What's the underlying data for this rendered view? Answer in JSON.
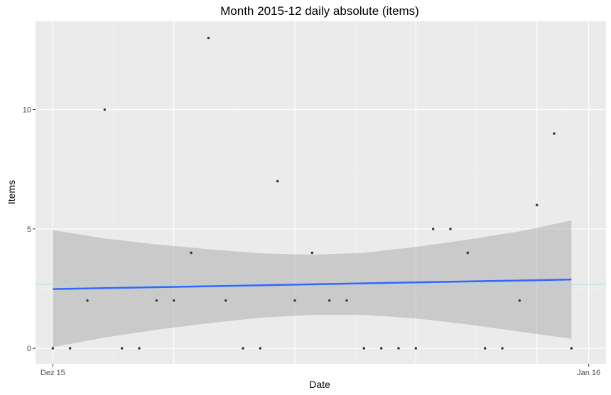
{
  "chart_data": {
    "type": "scatter",
    "title": "Month 2015-12 daily absolute (items)",
    "xlabel": "Date",
    "ylabel": "Items",
    "x_tick_labels": [
      {
        "date": "2015-12-01",
        "label": "Dez 15"
      },
      {
        "date": "2016-01-01",
        "label": "Jan 16"
      }
    ],
    "y_ticks": [
      0,
      5,
      10
    ],
    "xlim": [
      "2015-11-30",
      "2016-01-02"
    ],
    "ylim": [
      -0.65,
      13.7
    ],
    "grid": true,
    "points": [
      {
        "x": "2015-12-01",
        "y": 0
      },
      {
        "x": "2015-12-02",
        "y": 0
      },
      {
        "x": "2015-12-03",
        "y": 2
      },
      {
        "x": "2015-12-04",
        "y": 10
      },
      {
        "x": "2015-12-05",
        "y": 0
      },
      {
        "x": "2015-12-06",
        "y": 0
      },
      {
        "x": "2015-12-07",
        "y": 2
      },
      {
        "x": "2015-12-08",
        "y": 2
      },
      {
        "x": "2015-12-09",
        "y": 4
      },
      {
        "x": "2015-12-10",
        "y": 13
      },
      {
        "x": "2015-12-11",
        "y": 2
      },
      {
        "x": "2015-12-12",
        "y": 0
      },
      {
        "x": "2015-12-13",
        "y": 0
      },
      {
        "x": "2015-12-14",
        "y": 7
      },
      {
        "x": "2015-12-15",
        "y": 2
      },
      {
        "x": "2015-12-16",
        "y": 4
      },
      {
        "x": "2015-12-17",
        "y": 2
      },
      {
        "x": "2015-12-18",
        "y": 2
      },
      {
        "x": "2015-12-19",
        "y": 0
      },
      {
        "x": "2015-12-20",
        "y": 0
      },
      {
        "x": "2015-12-21",
        "y": 0
      },
      {
        "x": "2015-12-22",
        "y": 0
      },
      {
        "x": "2015-12-23",
        "y": 5
      },
      {
        "x": "2015-12-24",
        "y": 5
      },
      {
        "x": "2015-12-25",
        "y": 4
      },
      {
        "x": "2015-12-26",
        "y": 0
      },
      {
        "x": "2015-12-27",
        "y": 0
      },
      {
        "x": "2015-12-28",
        "y": 2
      },
      {
        "x": "2015-12-29",
        "y": 6
      },
      {
        "x": "2015-12-30",
        "y": 9
      },
      {
        "x": "2015-12-31",
        "y": 0
      }
    ],
    "mean_line": {
      "y": 2.68,
      "color": "#add8e6"
    },
    "trend": {
      "color": "#3366ff",
      "start": {
        "x": "2015-12-01",
        "y": 2.48
      },
      "end": {
        "x": "2015-12-31",
        "y": 2.88
      }
    },
    "confidence_band": {
      "color": "#999999",
      "upper": [
        {
          "x": "2015-12-01",
          "y": 4.95
        },
        {
          "x": "2015-12-04",
          "y": 4.6
        },
        {
          "x": "2015-12-07",
          "y": 4.35
        },
        {
          "x": "2015-12-10",
          "y": 4.15
        },
        {
          "x": "2015-12-13",
          "y": 3.98
        },
        {
          "x": "2015-12-16",
          "y": 3.92
        },
        {
          "x": "2015-12-19",
          "y": 4.0
        },
        {
          "x": "2015-12-22",
          "y": 4.25
        },
        {
          "x": "2015-12-25",
          "y": 4.55
        },
        {
          "x": "2015-12-28",
          "y": 4.9
        },
        {
          "x": "2015-12-31",
          "y": 5.35
        }
      ],
      "lower": [
        {
          "x": "2015-12-01",
          "y": 0.05
        },
        {
          "x": "2015-12-04",
          "y": 0.45
        },
        {
          "x": "2015-12-07",
          "y": 0.78
        },
        {
          "x": "2015-12-10",
          "y": 1.05
        },
        {
          "x": "2015-12-13",
          "y": 1.28
        },
        {
          "x": "2015-12-16",
          "y": 1.4
        },
        {
          "x": "2015-12-19",
          "y": 1.4
        },
        {
          "x": "2015-12-22",
          "y": 1.25
        },
        {
          "x": "2015-12-25",
          "y": 1.0
        },
        {
          "x": "2015-12-28",
          "y": 0.7
        },
        {
          "x": "2015-12-31",
          "y": 0.4
        }
      ]
    },
    "colors": {
      "panel": "#ebebeb",
      "grid_major": "#ffffff",
      "point": "#333333"
    }
  }
}
